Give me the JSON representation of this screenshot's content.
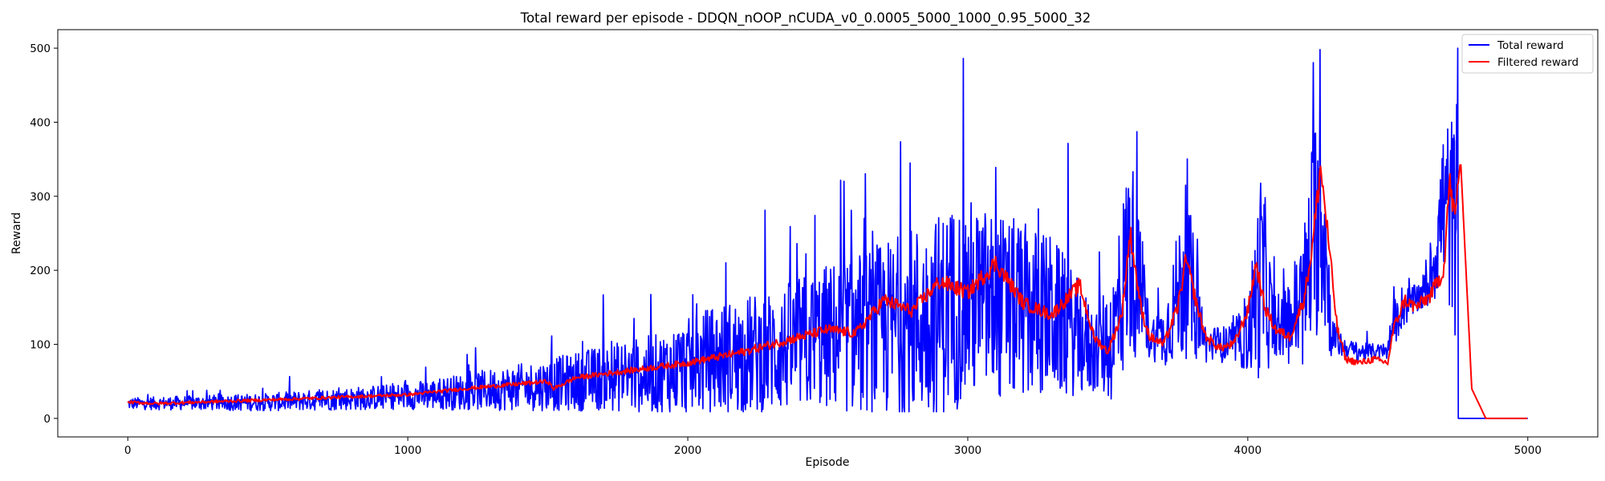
{
  "chart_data": {
    "type": "line",
    "title": "Total reward per episode - DDQN_nOOP_nCUDA_v0_0.0005_5000_1000_0.95_5000_32",
    "xlabel": "Episode",
    "ylabel": "Reward",
    "xlim": [
      -250,
      5250
    ],
    "ylim": [
      -25,
      525
    ],
    "xticks": [
      0,
      1000,
      2000,
      3000,
      4000,
      5000
    ],
    "yticks": [
      0,
      100,
      200,
      300,
      400,
      500
    ],
    "grid": false,
    "legend_position": "top-right",
    "series": [
      {
        "name": "Total reward",
        "color": "#0000ff",
        "style": "noisy",
        "x": [
          0,
          500,
          1000,
          1500,
          1700,
          1900,
          2100,
          2300,
          2500,
          2700,
          2900,
          3000,
          3100,
          3300,
          3450,
          3520,
          3580,
          3650,
          3700,
          3780,
          3850,
          3950,
          4000,
          4050,
          4100,
          4200,
          4260,
          4300,
          4350,
          4400,
          4500,
          4510,
          4550,
          4600,
          4650,
          4700,
          4740,
          4750,
          4751,
          5000
        ],
        "y": [
          20,
          22,
          30,
          45,
          55,
          60,
          80,
          90,
          110,
          120,
          140,
          160,
          150,
          140,
          90,
          110,
          230,
          110,
          110,
          200,
          100,
          100,
          110,
          200,
          110,
          160,
          310,
          110,
          95,
          90,
          90,
          110,
          150,
          160,
          180,
          290,
          260,
          330,
          0,
          0
        ],
        "noise": [
          8,
          12,
          18,
          35,
          45,
          55,
          75,
          85,
          100,
          120,
          140,
          140,
          130,
          110,
          60,
          90,
          150,
          30,
          40,
          120,
          25,
          25,
          50,
          150,
          25,
          100,
          190,
          30,
          12,
          12,
          10,
          25,
          30,
          20,
          30,
          120,
          150,
          150,
          0,
          0
        ]
      },
      {
        "name": "Filtered reward",
        "color": "#ff0000",
        "style": "smooth",
        "x": [
          0,
          100,
          500,
          1000,
          1200,
          1500,
          1520,
          1600,
          1800,
          2000,
          2200,
          2300,
          2400,
          2500,
          2600,
          2700,
          2800,
          2900,
          3000,
          3100,
          3200,
          3300,
          3400,
          3450,
          3500,
          3550,
          3580,
          3620,
          3650,
          3700,
          3750,
          3780,
          3820,
          3850,
          3900,
          3950,
          4000,
          4030,
          4060,
          4100,
          4150,
          4200,
          4230,
          4260,
          4280,
          4320,
          4350,
          4400,
          4450,
          4500,
          4520,
          4560,
          4600,
          4650,
          4700,
          4720,
          4740,
          4760,
          4800,
          4850,
          5000
        ],
        "y": [
          22,
          20,
          25,
          32,
          40,
          50,
          40,
          55,
          65,
          75,
          90,
          100,
          110,
          120,
          115,
          160,
          145,
          185,
          170,
          210,
          155,
          140,
          180,
          110,
          90,
          140,
          250,
          145,
          110,
          100,
          150,
          215,
          150,
          110,
          95,
          100,
          145,
          210,
          150,
          120,
          110,
          160,
          230,
          340,
          270,
          120,
          80,
          75,
          80,
          75,
          120,
          160,
          150,
          165,
          200,
          320,
          270,
          350,
          40,
          0,
          0
        ]
      }
    ]
  }
}
